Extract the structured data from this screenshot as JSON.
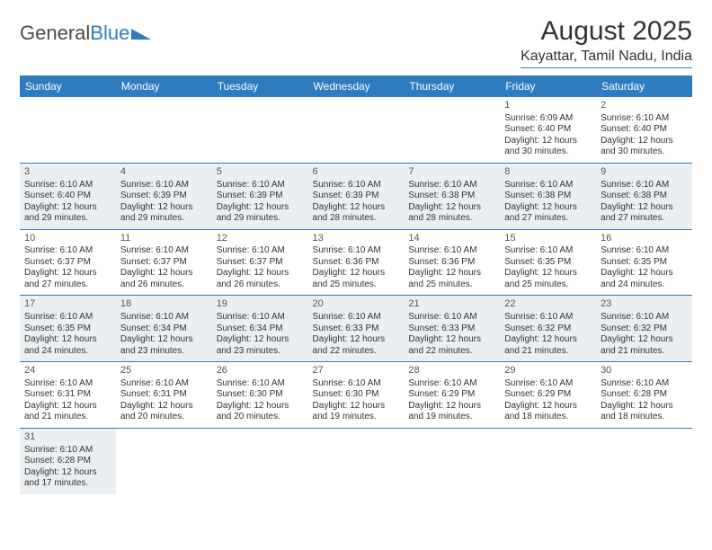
{
  "logo": {
    "part1": "General",
    "part2": "Blue"
  },
  "title": "August 2025",
  "subtitle": "Kayattar, Tamil Nadu, India",
  "colors": {
    "brand": "#2f7bbf",
    "header_text": "#ffffff",
    "row_alt": "#eceff1",
    "row_base": "#ffffff",
    "text": "#333333"
  },
  "weekdays": [
    "Sunday",
    "Monday",
    "Tuesday",
    "Wednesday",
    "Thursday",
    "Friday",
    "Saturday"
  ],
  "weeks": [
    [
      null,
      null,
      null,
      null,
      null,
      {
        "n": "1",
        "sr": "Sunrise: 6:09 AM",
        "ss": "Sunset: 6:40 PM",
        "d1": "Daylight: 12 hours",
        "d2": "and 30 minutes."
      },
      {
        "n": "2",
        "sr": "Sunrise: 6:10 AM",
        "ss": "Sunset: 6:40 PM",
        "d1": "Daylight: 12 hours",
        "d2": "and 30 minutes."
      }
    ],
    [
      {
        "n": "3",
        "sr": "Sunrise: 6:10 AM",
        "ss": "Sunset: 6:40 PM",
        "d1": "Daylight: 12 hours",
        "d2": "and 29 minutes."
      },
      {
        "n": "4",
        "sr": "Sunrise: 6:10 AM",
        "ss": "Sunset: 6:39 PM",
        "d1": "Daylight: 12 hours",
        "d2": "and 29 minutes."
      },
      {
        "n": "5",
        "sr": "Sunrise: 6:10 AM",
        "ss": "Sunset: 6:39 PM",
        "d1": "Daylight: 12 hours",
        "d2": "and 29 minutes."
      },
      {
        "n": "6",
        "sr": "Sunrise: 6:10 AM",
        "ss": "Sunset: 6:39 PM",
        "d1": "Daylight: 12 hours",
        "d2": "and 28 minutes."
      },
      {
        "n": "7",
        "sr": "Sunrise: 6:10 AM",
        "ss": "Sunset: 6:38 PM",
        "d1": "Daylight: 12 hours",
        "d2": "and 28 minutes."
      },
      {
        "n": "8",
        "sr": "Sunrise: 6:10 AM",
        "ss": "Sunset: 6:38 PM",
        "d1": "Daylight: 12 hours",
        "d2": "and 27 minutes."
      },
      {
        "n": "9",
        "sr": "Sunrise: 6:10 AM",
        "ss": "Sunset: 6:38 PM",
        "d1": "Daylight: 12 hours",
        "d2": "and 27 minutes."
      }
    ],
    [
      {
        "n": "10",
        "sr": "Sunrise: 6:10 AM",
        "ss": "Sunset: 6:37 PM",
        "d1": "Daylight: 12 hours",
        "d2": "and 27 minutes."
      },
      {
        "n": "11",
        "sr": "Sunrise: 6:10 AM",
        "ss": "Sunset: 6:37 PM",
        "d1": "Daylight: 12 hours",
        "d2": "and 26 minutes."
      },
      {
        "n": "12",
        "sr": "Sunrise: 6:10 AM",
        "ss": "Sunset: 6:37 PM",
        "d1": "Daylight: 12 hours",
        "d2": "and 26 minutes."
      },
      {
        "n": "13",
        "sr": "Sunrise: 6:10 AM",
        "ss": "Sunset: 6:36 PM",
        "d1": "Daylight: 12 hours",
        "d2": "and 25 minutes."
      },
      {
        "n": "14",
        "sr": "Sunrise: 6:10 AM",
        "ss": "Sunset: 6:36 PM",
        "d1": "Daylight: 12 hours",
        "d2": "and 25 minutes."
      },
      {
        "n": "15",
        "sr": "Sunrise: 6:10 AM",
        "ss": "Sunset: 6:35 PM",
        "d1": "Daylight: 12 hours",
        "d2": "and 25 minutes."
      },
      {
        "n": "16",
        "sr": "Sunrise: 6:10 AM",
        "ss": "Sunset: 6:35 PM",
        "d1": "Daylight: 12 hours",
        "d2": "and 24 minutes."
      }
    ],
    [
      {
        "n": "17",
        "sr": "Sunrise: 6:10 AM",
        "ss": "Sunset: 6:35 PM",
        "d1": "Daylight: 12 hours",
        "d2": "and 24 minutes."
      },
      {
        "n": "18",
        "sr": "Sunrise: 6:10 AM",
        "ss": "Sunset: 6:34 PM",
        "d1": "Daylight: 12 hours",
        "d2": "and 23 minutes."
      },
      {
        "n": "19",
        "sr": "Sunrise: 6:10 AM",
        "ss": "Sunset: 6:34 PM",
        "d1": "Daylight: 12 hours",
        "d2": "and 23 minutes."
      },
      {
        "n": "20",
        "sr": "Sunrise: 6:10 AM",
        "ss": "Sunset: 6:33 PM",
        "d1": "Daylight: 12 hours",
        "d2": "and 22 minutes."
      },
      {
        "n": "21",
        "sr": "Sunrise: 6:10 AM",
        "ss": "Sunset: 6:33 PM",
        "d1": "Daylight: 12 hours",
        "d2": "and 22 minutes."
      },
      {
        "n": "22",
        "sr": "Sunrise: 6:10 AM",
        "ss": "Sunset: 6:32 PM",
        "d1": "Daylight: 12 hours",
        "d2": "and 21 minutes."
      },
      {
        "n": "23",
        "sr": "Sunrise: 6:10 AM",
        "ss": "Sunset: 6:32 PM",
        "d1": "Daylight: 12 hours",
        "d2": "and 21 minutes."
      }
    ],
    [
      {
        "n": "24",
        "sr": "Sunrise: 6:10 AM",
        "ss": "Sunset: 6:31 PM",
        "d1": "Daylight: 12 hours",
        "d2": "and 21 minutes."
      },
      {
        "n": "25",
        "sr": "Sunrise: 6:10 AM",
        "ss": "Sunset: 6:31 PM",
        "d1": "Daylight: 12 hours",
        "d2": "and 20 minutes."
      },
      {
        "n": "26",
        "sr": "Sunrise: 6:10 AM",
        "ss": "Sunset: 6:30 PM",
        "d1": "Daylight: 12 hours",
        "d2": "and 20 minutes."
      },
      {
        "n": "27",
        "sr": "Sunrise: 6:10 AM",
        "ss": "Sunset: 6:30 PM",
        "d1": "Daylight: 12 hours",
        "d2": "and 19 minutes."
      },
      {
        "n": "28",
        "sr": "Sunrise: 6:10 AM",
        "ss": "Sunset: 6:29 PM",
        "d1": "Daylight: 12 hours",
        "d2": "and 19 minutes."
      },
      {
        "n": "29",
        "sr": "Sunrise: 6:10 AM",
        "ss": "Sunset: 6:29 PM",
        "d1": "Daylight: 12 hours",
        "d2": "and 18 minutes."
      },
      {
        "n": "30",
        "sr": "Sunrise: 6:10 AM",
        "ss": "Sunset: 6:28 PM",
        "d1": "Daylight: 12 hours",
        "d2": "and 18 minutes."
      }
    ],
    [
      {
        "n": "31",
        "sr": "Sunrise: 6:10 AM",
        "ss": "Sunset: 6:28 PM",
        "d1": "Daylight: 12 hours",
        "d2": "and 17 minutes."
      },
      null,
      null,
      null,
      null,
      null,
      null
    ]
  ]
}
